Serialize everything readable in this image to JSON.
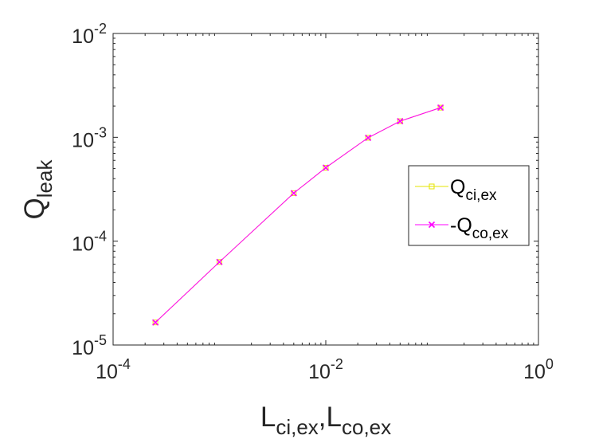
{
  "chart_data": {
    "type": "line",
    "xscale": "log",
    "yscale": "log",
    "xlim": [
      0.0001,
      1
    ],
    "ylim": [
      1e-05,
      0.01
    ],
    "xlabel": {
      "main": "L",
      "sub1": "ci,ex",
      "sep": ",",
      "main2": "L",
      "sub2": "co,ex"
    },
    "ylabel": {
      "main": "Q",
      "sub": "leak"
    },
    "xticks": [
      {
        "value": 0.0001,
        "base": "10",
        "exp": "-4"
      },
      {
        "value": 0.01,
        "base": "10",
        "exp": "-2"
      },
      {
        "value": 1,
        "base": "10",
        "exp": "0"
      }
    ],
    "yticks": [
      {
        "value": 1e-05,
        "base": "10",
        "exp": "-5"
      },
      {
        "value": 0.0001,
        "base": "10",
        "exp": "-4"
      },
      {
        "value": 0.001,
        "base": "10",
        "exp": "-3"
      },
      {
        "value": 0.01,
        "base": "10",
        "exp": "-2"
      }
    ],
    "grid": false,
    "legend_position": "right",
    "series": [
      {
        "label_main": "Q",
        "label_sub": "ci,ex",
        "color": "#e6e600",
        "marker": "square",
        "x": [
          0.00025,
          0.001,
          0.005,
          0.01,
          0.025,
          0.05,
          0.12
        ],
        "y": [
          1.65e-05,
          6.3e-05,
          0.00029,
          0.00051,
          0.00099,
          0.00143,
          0.00193
        ]
      },
      {
        "label_main": "-Q",
        "label_sub": "co,ex",
        "color": "#ff00ff",
        "marker": "x",
        "x": [
          0.00025,
          0.001,
          0.005,
          0.01,
          0.025,
          0.05,
          0.12
        ],
        "y": [
          1.65e-05,
          6.3e-05,
          0.00029,
          0.00051,
          0.00099,
          0.00143,
          0.00193
        ]
      }
    ]
  }
}
